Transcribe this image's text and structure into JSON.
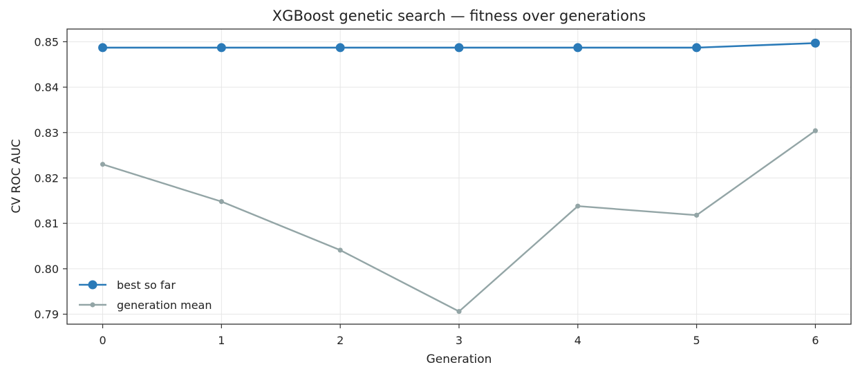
{
  "chart_data": {
    "type": "line",
    "title": "XGBoost genetic search — fitness over generations",
    "xlabel": "Generation",
    "ylabel": "CV ROC AUC",
    "x": [
      0,
      1,
      2,
      3,
      4,
      5,
      6
    ],
    "xticks": [
      "0",
      "1",
      "2",
      "3",
      "4",
      "5",
      "6"
    ],
    "yticks": [
      "0.79",
      "0.80",
      "0.81",
      "0.82",
      "0.83",
      "0.84",
      "0.85"
    ],
    "ytick_values": [
      0.79,
      0.8,
      0.81,
      0.82,
      0.83,
      0.84,
      0.85
    ],
    "xlim": [
      -0.3,
      6.3
    ],
    "ylim": [
      0.7878,
      0.8528
    ],
    "grid": true,
    "legend_position": "lower-left",
    "series": [
      {
        "name": "best so far",
        "values": [
          0.8487,
          0.8487,
          0.8487,
          0.8487,
          0.8487,
          0.8487,
          0.8497
        ],
        "color": "#2a7ab8",
        "marker": "large-dot"
      },
      {
        "name": "generation mean",
        "values": [
          0.823,
          0.8148,
          0.8041,
          0.7906,
          0.8138,
          0.8118,
          0.8304
        ],
        "color": "#93a5a6",
        "marker": "small-dot"
      }
    ]
  }
}
